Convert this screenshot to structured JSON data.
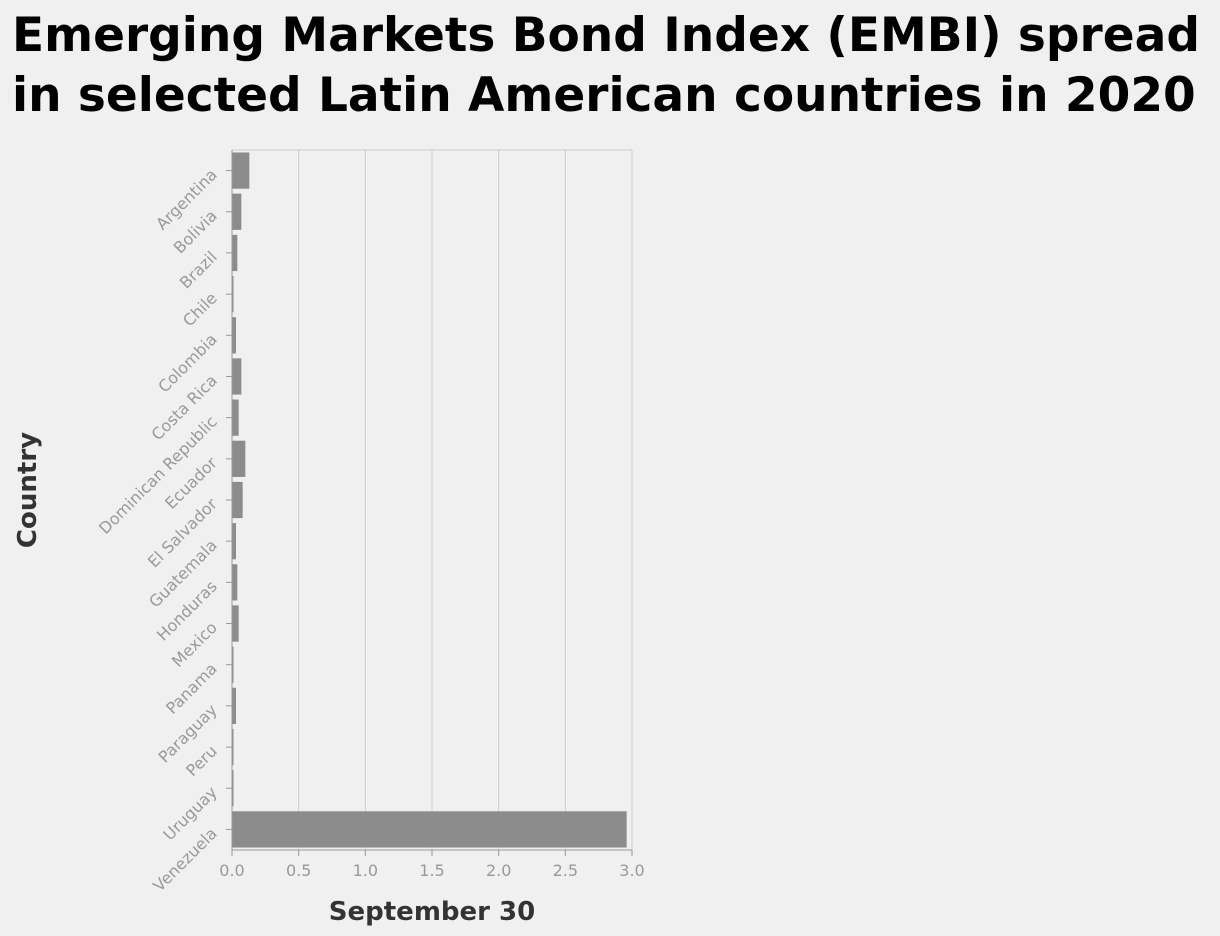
{
  "chart_data": {
    "type": "bar",
    "orientation": "horizontal",
    "title": "Emerging Markets Bond Index (EMBI) spread in selected Latin American countries in 2020",
    "xlabel": "September 30",
    "ylabel": "Country",
    "categories": [
      "Argentina",
      "Bolivia",
      "Brazil",
      "Chile",
      "Colombia",
      "Costa Rica",
      "Dominican Republic",
      "Ecuador",
      "El Salvador",
      "Guatemala",
      "Honduras",
      "Mexico",
      "Panama",
      "Paraguay",
      "Peru",
      "Uruguay",
      "Venezuela"
    ],
    "values": [
      0.13,
      0.07,
      0.04,
      0.01,
      0.03,
      0.07,
      0.05,
      0.1,
      0.08,
      0.03,
      0.04,
      0.05,
      0.01,
      0.03,
      0.01,
      0.01,
      2.96
    ],
    "xlim": [
      0,
      3.0
    ],
    "xticks": [
      "0.0",
      "0.5",
      "1.0",
      "1.5",
      "2.0",
      "2.5",
      "3.0"
    ],
    "grid": true,
    "legend": "none",
    "bar_color": "#8c8c8c",
    "grid_color": "#cccccc",
    "background": "#f0f0f0"
  }
}
